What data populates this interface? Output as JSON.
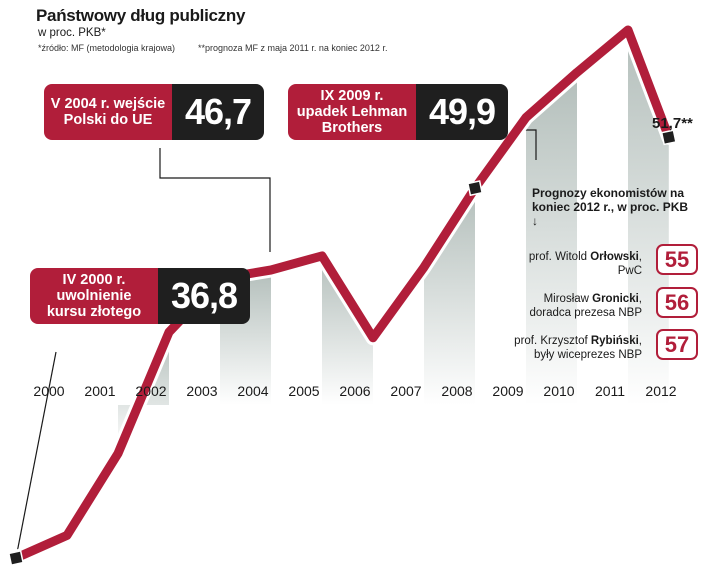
{
  "header": {
    "title": "Państwowy dług publiczny",
    "subtitle": "w proc. PKB*",
    "note_source": "*źródło: MF (metodologia krajowa)",
    "note_forecast": "**prognoza MF z maja 2011 r. na koniec 2012 r."
  },
  "chart_data": {
    "type": "line",
    "title": "Państwowy dług publiczny",
    "ylabel": "w proc. PKB",
    "categories": [
      "2000",
      "2001",
      "2002",
      "2003",
      "2004",
      "2005",
      "2006",
      "2007",
      "2008",
      "2009",
      "2010",
      "2011",
      "2012"
    ],
    "series": [
      {
        "name": "dług publiczny (% PKB)",
        "x": [
          2000,
          2001,
          2002,
          2003,
          2004,
          2005,
          2006,
          2007,
          2008,
          2009,
          2010,
          2011,
          2012,
          2012.8
        ],
        "values": [
          36.8,
          37.6,
          40.5,
          44.8,
          46.7,
          47.0,
          47.5,
          44.6,
          47.1,
          49.9,
          52.4,
          54.0,
          55.5,
          51.7
        ]
      }
    ],
    "ylim": [
      36.8,
      55.5
    ]
  },
  "callouts": [
    {
      "label": "IV 2000 r. uwolnienie kursu złotego",
      "value": "36,8"
    },
    {
      "label": "V 2004 r. wejście Polski do UE",
      "value": "46,7"
    },
    {
      "label": "IX 2009 r. upadek Lehman Brothers",
      "value": "49,9"
    }
  ],
  "end_label": "51,7**",
  "forecasts": {
    "heading": "Prognozy ekonomistów na koniec 2012 r., w proc. PKB",
    "arrow": "↓",
    "items": [
      {
        "prefix": "prof. Witold ",
        "surname": "Orłowski",
        "suffix": ",",
        "role": "PwC",
        "value": "55"
      },
      {
        "prefix": "Mirosław ",
        "surname": "Gronicki",
        "suffix": ",",
        "role": "doradca prezesa NBP",
        "value": "56"
      },
      {
        "prefix": "prof. Krzysztof ",
        "surname": "Rybiński",
        "suffix": ",",
        "role": "były wiceprezes NBP",
        "value": "57"
      }
    ]
  },
  "colors": {
    "line": "#b11e3a",
    "label_bg": "#b11e3a",
    "value_bg": "#1f1f1f",
    "marker": "#1f1f1f"
  }
}
